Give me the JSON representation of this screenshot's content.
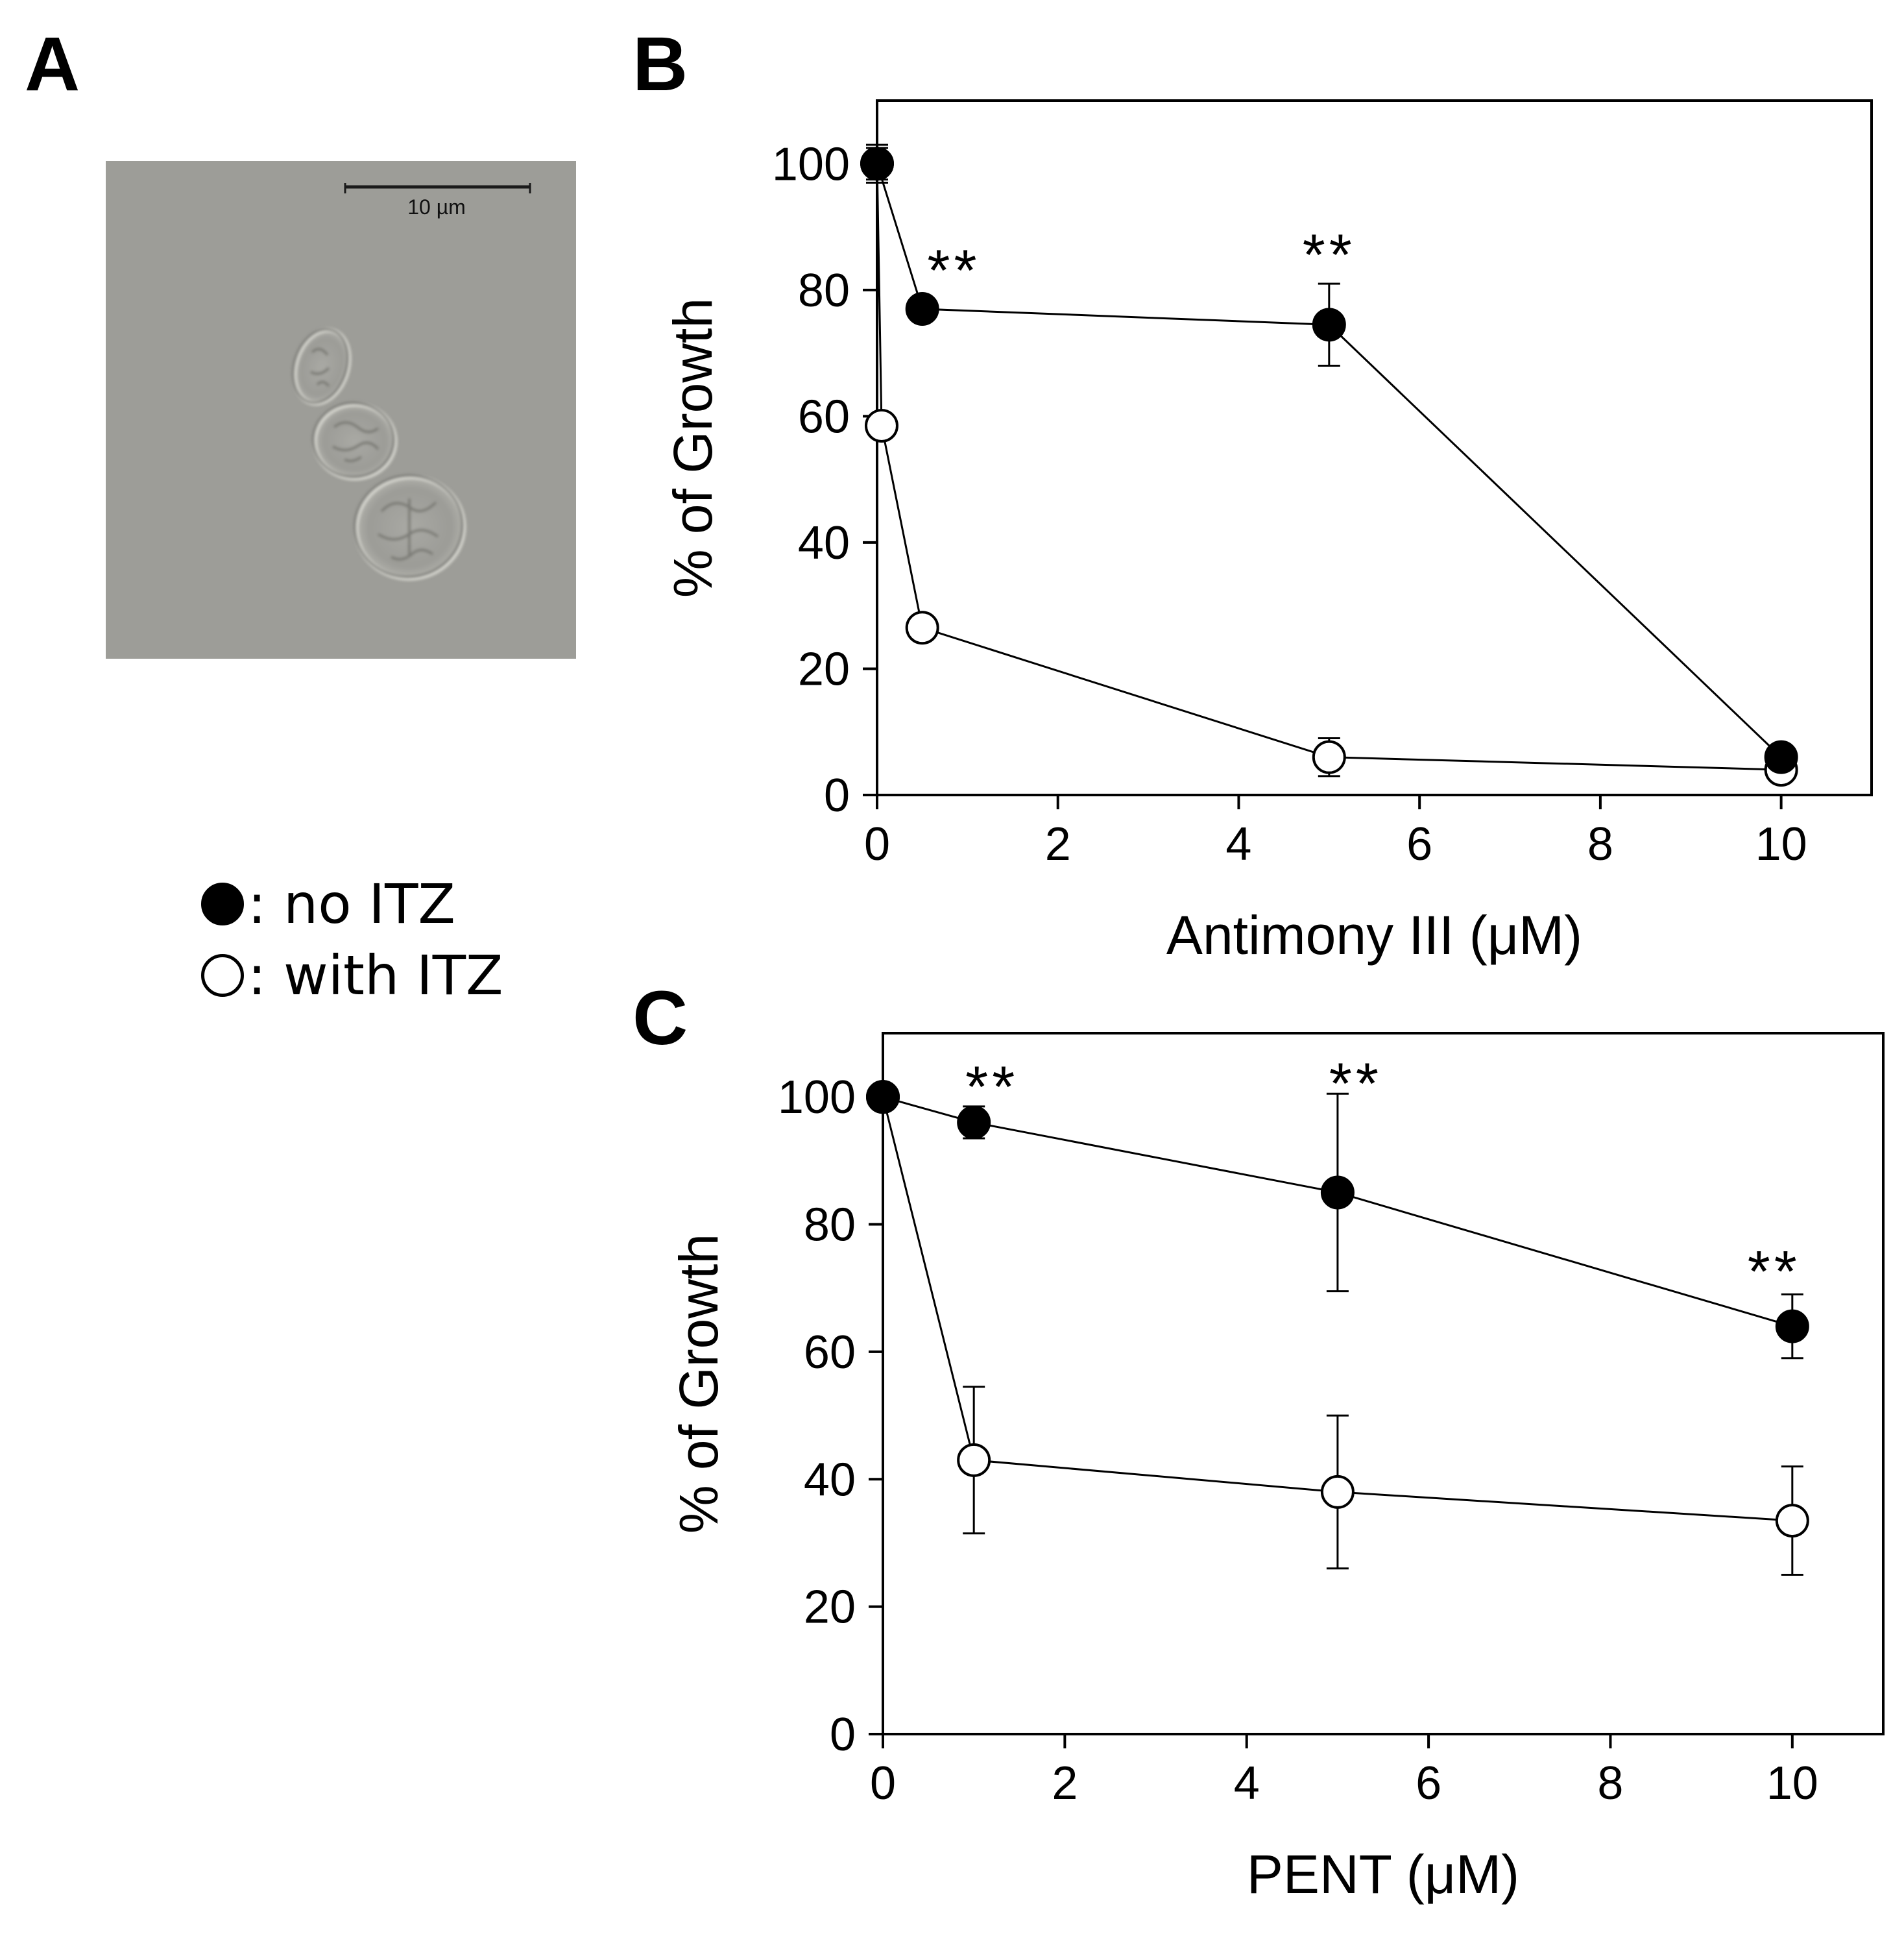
{
  "panels": {
    "a": {
      "letter": "A",
      "scale_bar_label": "10 µm"
    },
    "b": {
      "letter": "B"
    },
    "c": {
      "letter": "C"
    }
  },
  "legend": {
    "items": [
      {
        "marker": "filled-circle",
        "label": ": no ITZ"
      },
      {
        "marker": "open-circle",
        "label": ": with ITZ"
      }
    ]
  },
  "chart_data": [
    {
      "panel": "B",
      "type": "line",
      "xlabel": "Antimony III (μM)",
      "ylabel": "% of Growth",
      "xlim": [
        0,
        11
      ],
      "ylim": [
        0,
        110
      ],
      "xticks": [
        0,
        2,
        4,
        6,
        8,
        10
      ],
      "yticks": [
        0,
        20,
        40,
        60,
        80,
        100
      ],
      "grid": false,
      "series": [
        {
          "name": "no ITZ",
          "marker": "filled",
          "x": [
            0,
            0.5,
            5,
            10
          ],
          "y": [
            100,
            77,
            74.5,
            6
          ],
          "err": [
            3,
            1,
            6.5,
            1.5
          ]
        },
        {
          "name": "with ITZ",
          "marker": "open",
          "x": [
            0,
            0.05,
            0.5,
            5,
            10
          ],
          "y": [
            100,
            58.5,
            26.5,
            6,
            4
          ],
          "err": [
            2.5,
            1,
            1.5,
            3,
            1
          ]
        }
      ],
      "annotations": [
        {
          "text": "**",
          "x": 0.85,
          "y": 83
        },
        {
          "text": "**",
          "x": 5,
          "y": 85.5
        }
      ]
    },
    {
      "panel": "C",
      "type": "line",
      "xlabel": "PENT (μM)",
      "ylabel": "% of Growth",
      "xlim": [
        0,
        11
      ],
      "ylim": [
        0,
        110
      ],
      "xticks": [
        0,
        2,
        4,
        6,
        8,
        10
      ],
      "yticks": [
        0,
        20,
        40,
        60,
        80,
        100
      ],
      "grid": false,
      "series": [
        {
          "name": "no ITZ",
          "marker": "filled",
          "x": [
            0,
            1,
            5,
            10
          ],
          "y": [
            100,
            96,
            85,
            64
          ],
          "err": [
            0,
            2.5,
            15.5,
            5
          ]
        },
        {
          "name": "with ITZ",
          "marker": "open",
          "x": [
            0,
            1,
            5,
            10
          ],
          "y": [
            100,
            43,
            38,
            33.5
          ],
          "err": [
            0,
            11.5,
            12,
            8.5
          ]
        }
      ],
      "annotations": [
        {
          "text": "**",
          "x": 1.2,
          "y": 101.5
        },
        {
          "text": "**",
          "x": 5.2,
          "y": 102
        },
        {
          "text": "**",
          "x": 9.8,
          "y": 72.5
        }
      ]
    }
  ]
}
